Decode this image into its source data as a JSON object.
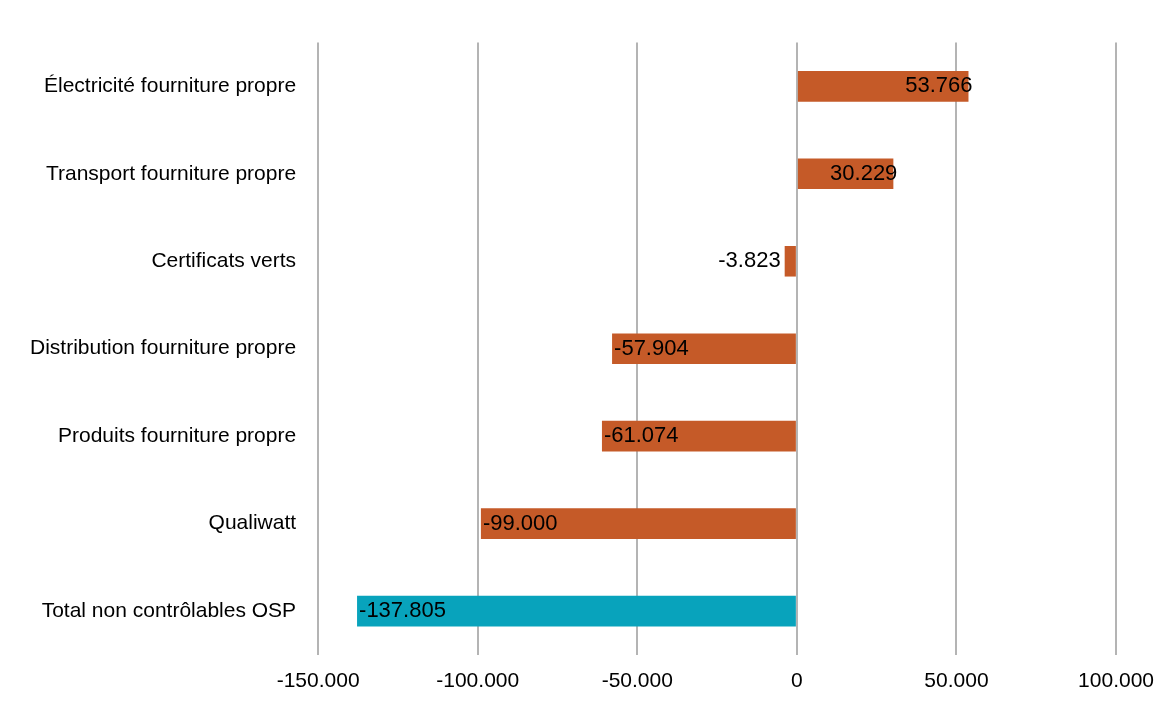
{
  "chart_data": {
    "type": "bar",
    "orientation": "horizontal",
    "categories": [
      "Électricité fourniture propre",
      "Transport fourniture propre",
      "Certificats verts",
      "Distribution fourniture propre",
      "Produits fourniture propre",
      "Qualiwatt",
      "Total non contrôlables OSP"
    ],
    "values": [
      53766,
      30229,
      -3823,
      -57904,
      -61074,
      -99000,
      -137805
    ],
    "colors": [
      "#c55a28",
      "#c55a28",
      "#c55a28",
      "#c55a28",
      "#c55a28",
      "#c55a28",
      "#08a3bc"
    ],
    "value_labels": [
      "53.766",
      "30.229",
      "-3.823",
      "-57.904",
      "-61.074",
      "-99.000",
      "-137.805"
    ],
    "xlim": [
      -150000,
      100000
    ],
    "xticks": [
      {
        "value": -150000,
        "label": "-150.000"
      },
      {
        "value": -100000,
        "label": "-100.000"
      },
      {
        "value": -50000,
        "label": "-50.000"
      },
      0,
      {
        "value": 50000,
        "label": "50.000"
      },
      {
        "value": 100000,
        "label": "100.000"
      }
    ],
    "grid": "x",
    "legend": false
  }
}
